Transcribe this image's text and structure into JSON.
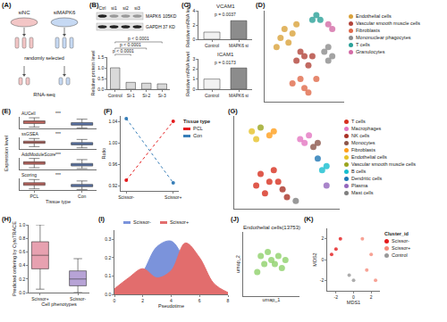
{
  "panel_labels": [
    "(A)",
    "(B)",
    "(C)",
    "(D)",
    "(E)",
    "(F)",
    "(G)",
    "(H)",
    "(I)",
    "(J)",
    "(K)"
  ],
  "schematic": {
    "groups": [
      "siNC",
      "siMAPK6"
    ],
    "step": "randomly selected",
    "output": "RNA-seq"
  },
  "blot": {
    "lanes": [
      "Ctrl",
      "si1",
      "si2",
      "si3"
    ],
    "bands": [
      {
        "name": "MAPK6",
        "size": "105KD"
      },
      {
        "name": "GAPDH",
        "size": "37 KD"
      }
    ]
  },
  "chart_data": [
    {
      "type": "bar",
      "ylabel": "Relative protein level",
      "categories": [
        "Control",
        "Si-1",
        "Si-2",
        "Si-3"
      ],
      "values": [
        1.0,
        0.32,
        0.28,
        0.25
      ],
      "color": "#d9d9d9",
      "ylim": [
        0,
        1.5
      ],
      "yticks": [
        {
          "value": 0,
          "label": "0.0"
        },
        0.5,
        {
          "value": 1,
          "label": "1.0"
        },
        1.5
      ],
      "annotations": [
        "p < 0.0001",
        "p < 0.0001",
        "p < 0.0001"
      ]
    },
    {
      "type": "bar",
      "title": "VCAM1",
      "ylabel": "Relative mRNA level",
      "categories": [
        "Control",
        "MAPK6 si"
      ],
      "values": [
        1.0,
        2.6
      ],
      "colors": [
        "#f2f2f2",
        "#8c8c8c"
      ],
      "ylim": [
        0,
        4
      ],
      "yticks": [
        0,
        2,
        4
      ],
      "annotations": [
        "p = 0.0037"
      ]
    },
    {
      "type": "bar",
      "title": "ICAM1",
      "ylabel": "Relative mRNA level",
      "categories": [
        "Control",
        "MAPK6 si"
      ],
      "values": [
        1.0,
        2.1
      ],
      "colors": [
        "#f2f2f2",
        "#8c8c8c"
      ],
      "ylim": [
        0,
        3
      ],
      "yticks": [
        0,
        1,
        2,
        3
      ],
      "annotations": [
        "p = 0.0173"
      ]
    },
    {
      "type": "scatter",
      "tick_labels": false,
      "legend": "right",
      "xlim": [
        -10,
        10
      ],
      "ylim": [
        -10,
        10
      ],
      "series": [
        {
          "name": "Endothelial cells",
          "color": "#d9a23b",
          "x": [
            -6,
            -5,
            -3,
            -7,
            -4,
            -2
          ],
          "y": [
            4,
            6,
            5,
            2,
            3,
            7
          ]
        },
        {
          "name": "Vascular smooth muscle cells",
          "color": "#b2443a",
          "x": [
            -2,
            0,
            1,
            -1,
            2
          ],
          "y": [
            -1,
            0,
            -2,
            1,
            0
          ]
        },
        {
          "name": "Fibroblasts",
          "color": "#e06a4a",
          "x": [
            -3,
            0,
            3,
            1,
            -1
          ],
          "y": [
            -6,
            -7,
            -5,
            -8,
            -5
          ]
        },
        {
          "name": "Mononuclear phagocytes",
          "color": "#8c8c8c",
          "x": [
            5,
            6,
            7,
            6
          ],
          "y": [
            1,
            2,
            0,
            -1
          ]
        },
        {
          "name": "T cells",
          "color": "#2aa198",
          "x": [
            2,
            3,
            4
          ],
          "y": [
            8,
            9,
            8
          ]
        },
        {
          "name": "Granulocytes",
          "color": "#d36ba6",
          "x": [
            6,
            7
          ],
          "y": [
            7,
            6
          ]
        }
      ]
    },
    {
      "type": "box",
      "xlabel": "Tissue type",
      "ylabel": "Expression level",
      "categories": [
        "PCL",
        "Con"
      ],
      "colors": [
        "#e8746b",
        "#6c8ed1"
      ],
      "ylim": [
        0,
        1
      ],
      "tick_labels": "x",
      "facets": [
        {
          "name": "AUCell",
          "significance": "***",
          "lower": [
            0.12,
            0.05
          ],
          "q1": [
            0.42,
            0.28
          ],
          "median": [
            0.55,
            0.38
          ],
          "q3": [
            0.66,
            0.5
          ],
          "upper": [
            0.92,
            0.8
          ]
        },
        {
          "name": "ssGSEA",
          "significance": "***",
          "lower": [
            0.2,
            0.1
          ],
          "q1": [
            0.48,
            0.35
          ],
          "median": [
            0.58,
            0.45
          ],
          "q3": [
            0.68,
            0.55
          ],
          "upper": [
            0.9,
            0.82
          ]
        },
        {
          "name": "AddModuleScore",
          "significance": "***",
          "lower": [
            0.15,
            0.08
          ],
          "q1": [
            0.45,
            0.3
          ],
          "median": [
            0.56,
            0.4
          ],
          "q3": [
            0.67,
            0.52
          ],
          "upper": [
            0.95,
            0.85
          ]
        },
        {
          "name": "Scoring",
          "significance": "***",
          "lower": [
            0.1,
            0.05
          ],
          "q1": [
            0.4,
            0.28
          ],
          "median": [
            0.52,
            0.38
          ],
          "q3": [
            0.63,
            0.48
          ],
          "upper": [
            0.9,
            0.78
          ]
        }
      ]
    },
    {
      "type": "line",
      "ylabel": "Ratio",
      "legend": "right",
      "legend_title": "Tissue type",
      "categories": [
        "Scissor-",
        "Scissor+"
      ],
      "marker": "circle",
      "line_style": "dotted",
      "ylim": [
        0.91,
        1.05
      ],
      "yticks": [
        0.92,
        0.96,
        {
          "value": 1,
          "label": "1.00"
        },
        1.04
      ],
      "series": [
        {
          "name": "PCL",
          "color": "#e41a1c",
          "values": [
            0.93,
            1.04
          ]
        },
        {
          "name": "Con",
          "color": "#377eb8",
          "values": [
            1.045,
            0.925
          ]
        }
      ]
    },
    {
      "type": "scatter",
      "tick_labels": false,
      "legend": "right",
      "xlim": [
        -12,
        12
      ],
      "ylim": [
        -12,
        12
      ],
      "series": [
        {
          "name": "T cells",
          "color": "#d7301f",
          "x": [
            -6,
            -4,
            -7,
            -3,
            -5,
            -2
          ],
          "y": [
            -3,
            -5,
            -6,
            -2,
            -8,
            -5
          ]
        },
        {
          "name": "Macrophages",
          "color": "#e377c2",
          "x": [
            3,
            5,
            4
          ],
          "y": [
            6,
            7,
            5
          ]
        },
        {
          "name": "NK cells",
          "color": "#a93226",
          "x": [
            -1,
            0
          ],
          "y": [
            -7,
            -9
          ]
        },
        {
          "name": "Monocytes",
          "color": "#8c564b",
          "x": [
            6,
            7
          ],
          "y": [
            4,
            5
          ]
        },
        {
          "name": "Fibroblasts",
          "color": "#ff9f1c",
          "x": [
            -4,
            -3
          ],
          "y": [
            7,
            8
          ]
        },
        {
          "name": "Endothelial cells",
          "color": "#e6c229",
          "x": [
            -7,
            -8
          ],
          "y": [
            6,
            8
          ]
        },
        {
          "name": "Vascular smooth muscle cells",
          "color": "#9aa51f",
          "x": [
            -6
          ],
          "y": [
            9
          ]
        },
        {
          "name": "B cells",
          "color": "#17becf",
          "x": [
            8,
            9
          ],
          "y": [
            -2,
            -1
          ]
        },
        {
          "name": "Dendritic cells",
          "color": "#1f77b4",
          "x": [
            7
          ],
          "y": [
            1
          ]
        },
        {
          "name": "Plasma",
          "color": "#9467bd",
          "x": [
            9
          ],
          "y": [
            -6
          ]
        },
        {
          "name": "Mast cells",
          "color": "#7f7f7f",
          "x": [
            2
          ],
          "y": [
            -10
          ]
        }
      ]
    },
    {
      "type": "box",
      "xlabel": "Cell phenotypes",
      "ylabel": "Predicted ordering by CytoTRACE",
      "categories": [
        "Scissor+",
        "Scissor-"
      ],
      "colors": [
        "#e7a1b0",
        "#b7a3d6"
      ],
      "ylim": [
        0,
        1
      ],
      "yticks": [
        {
          "value": 0,
          "label": "0.0"
        },
        0.2,
        0.4,
        0.6,
        0.8,
        {
          "value": 1,
          "label": "1.0"
        }
      ],
      "lower": [
        0.05,
        0.0
      ],
      "q1": [
        0.35,
        0.1
      ],
      "median": [
        0.55,
        0.2
      ],
      "q3": [
        0.75,
        0.32
      ],
      "upper": [
        1.0,
        0.5
      ]
    },
    {
      "type": "area",
      "xlabel": "Pseudotime",
      "legend": "top",
      "line_style": "smooth",
      "x": [
        0,
        1,
        2,
        3,
        4,
        5,
        6,
        7,
        8
      ],
      "xlim": [
        0,
        8
      ],
      "xticks": [
        0,
        2,
        4,
        6,
        8
      ],
      "ylim": [
        0,
        0.35
      ],
      "yticks": [
        {
          "value": 0,
          "label": "0.0"
        },
        0.1,
        0.2,
        0.3
      ],
      "series": [
        {
          "name": "Scissor-",
          "color": "#7b93db",
          "values": [
            0.0,
            0.03,
            0.12,
            0.26,
            0.29,
            0.18,
            0.07,
            0.02,
            0.0
          ]
        },
        {
          "name": "Scissor+",
          "color": "#e26d6d",
          "values": [
            0.03,
            0.09,
            0.14,
            0.09,
            0.13,
            0.28,
            0.2,
            0.06,
            0.01
          ]
        }
      ]
    },
    {
      "type": "scatter",
      "title": "Endothelial cells(13753)",
      "xlabel": "umap_1",
      "ylabel": "umap_2",
      "tick_labels": false,
      "xlim": [
        -8,
        8
      ],
      "ylim": [
        -8,
        8
      ],
      "series": [
        {
          "color": "#8fd16a",
          "x": [
            -3,
            -1,
            0,
            2,
            1,
            -2,
            3,
            -4,
            4
          ],
          "y": [
            2,
            3,
            1,
            2,
            0,
            0,
            -1,
            -2,
            1
          ]
        }
      ]
    },
    {
      "type": "scatter",
      "xlabel": "MDS1",
      "ylabel": "MDS2",
      "legend": "right",
      "legend_title": "Cluster_id",
      "xlim": [
        -3,
        3
      ],
      "xticks": [
        -2,
        0,
        2
      ],
      "ylim": [
        -3,
        3
      ],
      "yticks": [
        -2,
        0,
        2
      ],
      "series": [
        {
          "name": "Scissor-",
          "color": "#e41a1c",
          "x": [
            -2,
            -1.5,
            -2.5
          ],
          "y": [
            1,
            2,
            0.5
          ]
        },
        {
          "name": "Scissor+",
          "color": "#f58b7b",
          "x": [
            1.5,
            2,
            1,
            2.5
          ],
          "y": [
            -1,
            0.5,
            2,
            -2
          ]
        },
        {
          "name": "Control",
          "color": "#999999",
          "x": [
            -0.5,
            0
          ],
          "y": [
            -1.5,
            -2
          ]
        }
      ]
    }
  ]
}
